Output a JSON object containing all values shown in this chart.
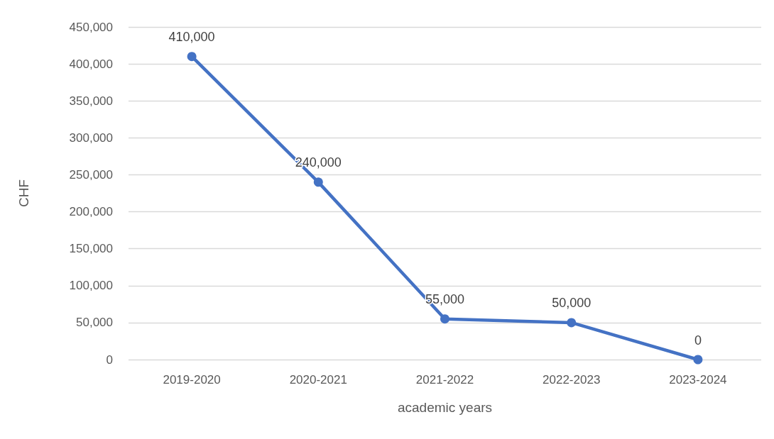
{
  "chart_data": {
    "type": "line",
    "xlabel": "academic years",
    "ylabel": "CHF",
    "categories": [
      "2019-2020",
      "2020-2021",
      "2021-2022",
      "2022-2023",
      "2023-2024"
    ],
    "values": [
      410000,
      240000,
      55000,
      50000,
      0
    ],
    "value_labels": [
      "410,000",
      "240,000",
      "55,000",
      "50,000",
      "0"
    ],
    "color": "#4472c4",
    "marker": "circle",
    "line_style": "solid",
    "grid": "y",
    "ylim": [
      0,
      450000
    ],
    "yticks": [
      {
        "value": 0,
        "label": "0"
      },
      {
        "value": 50000,
        "label": "50,000"
      },
      {
        "value": 100000,
        "label": "100,000"
      },
      {
        "value": 150000,
        "label": "150,000"
      },
      {
        "value": 200000,
        "label": "200,000"
      },
      {
        "value": 250000,
        "label": "250,000"
      },
      {
        "value": 300000,
        "label": "300,000"
      },
      {
        "value": 350000,
        "label": "350,000"
      },
      {
        "value": 400000,
        "label": "400,000"
      },
      {
        "value": 450000,
        "label": "450,000"
      }
    ]
  }
}
